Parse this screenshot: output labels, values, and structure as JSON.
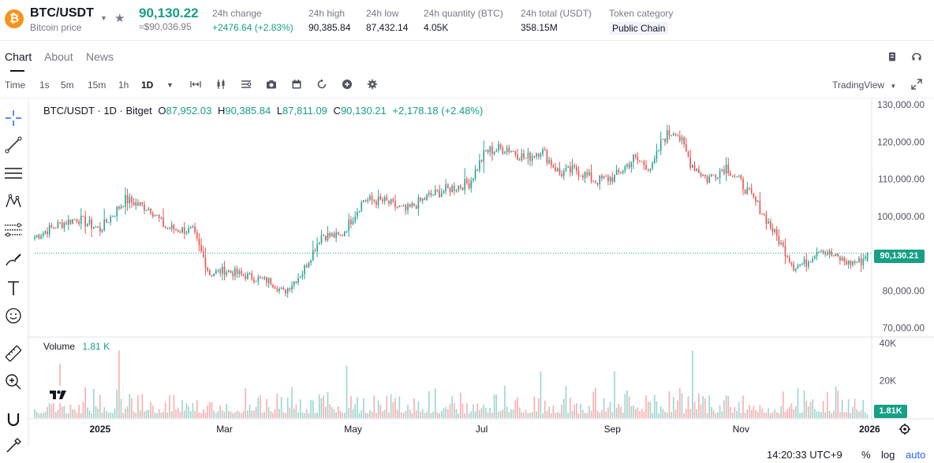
{
  "ticker": {
    "coin_symbol": "₿",
    "pair": "BTC/USDT",
    "subtitle": "Bitcoin price",
    "price": "90,130.22",
    "price_converted": "≈$90,036.95",
    "change_label": "24h change",
    "change_value": "+2476.64 (+2.83%)",
    "high_label": "24h high",
    "high_value": "90,385.84",
    "low_label": "24h low",
    "low_value": "87,432.14",
    "qty_label": "24h quantity (BTC)",
    "qty_value": "4.05K",
    "total_label": "24h total (USDT)",
    "total_value": "358.15M",
    "category_label": "Token category",
    "category_value": "Public Chain"
  },
  "tabs": {
    "chart": "Chart",
    "about": "About",
    "news": "News"
  },
  "toolbar": {
    "time": "Time",
    "intervals": [
      "1s",
      "5m",
      "15m",
      "1h",
      "1D"
    ],
    "active_interval": "1D",
    "mode": "TradingView",
    "icons": [
      "range-icon",
      "candles-icon",
      "indicators-icon",
      "camera-icon",
      "calendar-icon",
      "replay-icon",
      "add-icon",
      "settings-icon"
    ]
  },
  "legend": {
    "symbol": "BTC/USDT · 1D · Bitget",
    "o_label": "O",
    "o": "87,952.03",
    "h_label": "H",
    "h": "90,385.84",
    "l_label": "L",
    "l": "87,811.09",
    "c_label": "C",
    "c": "90,130.21",
    "change": "+2,178.18 (+2.48%)"
  },
  "volume_legend": {
    "label": "Volume",
    "value": "1.81 K"
  },
  "current_price_tag": "90,130.21",
  "current_volume_tag": "1.81K",
  "status": {
    "time": "14:20:33 UTC+9",
    "percent": "%",
    "log": "log",
    "auto": "auto"
  },
  "colors": {
    "up": "#26a69a",
    "down": "#ef5350",
    "accent": "#16a085"
  },
  "chart_data": {
    "type": "candlestick",
    "title": "BTC/USDT · 1D · Bitget",
    "price_axis_ticks": [
      "130,000.00",
      "120,000.00",
      "110,000.00",
      "100,000.00",
      "90,000.00",
      "80,000.00",
      "70,000.00"
    ],
    "price_ylim": [
      68000,
      131500
    ],
    "volume_axis_ticks": [
      "40K",
      "20K"
    ],
    "volume_ylim": [
      0,
      42000
    ],
    "x_tick_labels": [
      "2025",
      "Mar",
      "May",
      "Jul",
      "Sep",
      "Nov",
      "2026"
    ],
    "x_tick_days": [
      31,
      90,
      151,
      212,
      274,
      335,
      396
    ],
    "x_range_days": [
      0,
      397
    ],
    "close_anchors": [
      [
        0,
        94500
      ],
      [
        10,
        97500
      ],
      [
        20,
        99500
      ],
      [
        31,
        96500
      ],
      [
        43,
        104500
      ],
      [
        55,
        102000
      ],
      [
        62,
        97000
      ],
      [
        75,
        96000
      ],
      [
        83,
        84500
      ],
      [
        90,
        85500
      ],
      [
        100,
        84000
      ],
      [
        112,
        82500
      ],
      [
        118,
        79500
      ],
      [
        127,
        85000
      ],
      [
        136,
        95000
      ],
      [
        145,
        94500
      ],
      [
        156,
        104500
      ],
      [
        166,
        104000
      ],
      [
        176,
        101500
      ],
      [
        187,
        105500
      ],
      [
        197,
        107500
      ],
      [
        206,
        109000
      ],
      [
        214,
        117500
      ],
      [
        224,
        118500
      ],
      [
        233,
        115500
      ],
      [
        240,
        118000
      ],
      [
        249,
        111500
      ],
      [
        257,
        112500
      ],
      [
        266,
        109500
      ],
      [
        275,
        110500
      ],
      [
        284,
        115500
      ],
      [
        293,
        113000
      ],
      [
        298,
        121000
      ],
      [
        304,
        123500
      ],
      [
        311,
        114500
      ],
      [
        319,
        110000
      ],
      [
        328,
        113500
      ],
      [
        335,
        109000
      ],
      [
        343,
        103000
      ],
      [
        352,
        94500
      ],
      [
        360,
        86500
      ],
      [
        366,
        87500
      ],
      [
        372,
        91500
      ],
      [
        380,
        89000
      ],
      [
        386,
        87500
      ],
      [
        392,
        87900
      ],
      [
        395,
        90130
      ]
    ],
    "last": {
      "open": 87952.03,
      "high": 90385.84,
      "low": 87811.09,
      "close": 90130.21,
      "volume": 1810
    },
    "volume_spikes": [
      [
        40,
        36000
      ],
      [
        12,
        29000
      ],
      [
        148,
        28000
      ],
      [
        312,
        36000
      ],
      [
        275,
        25000
      ],
      [
        240,
        25000
      ]
    ],
    "current_price": 90130.21,
    "grid": true,
    "log_scale": false
  }
}
